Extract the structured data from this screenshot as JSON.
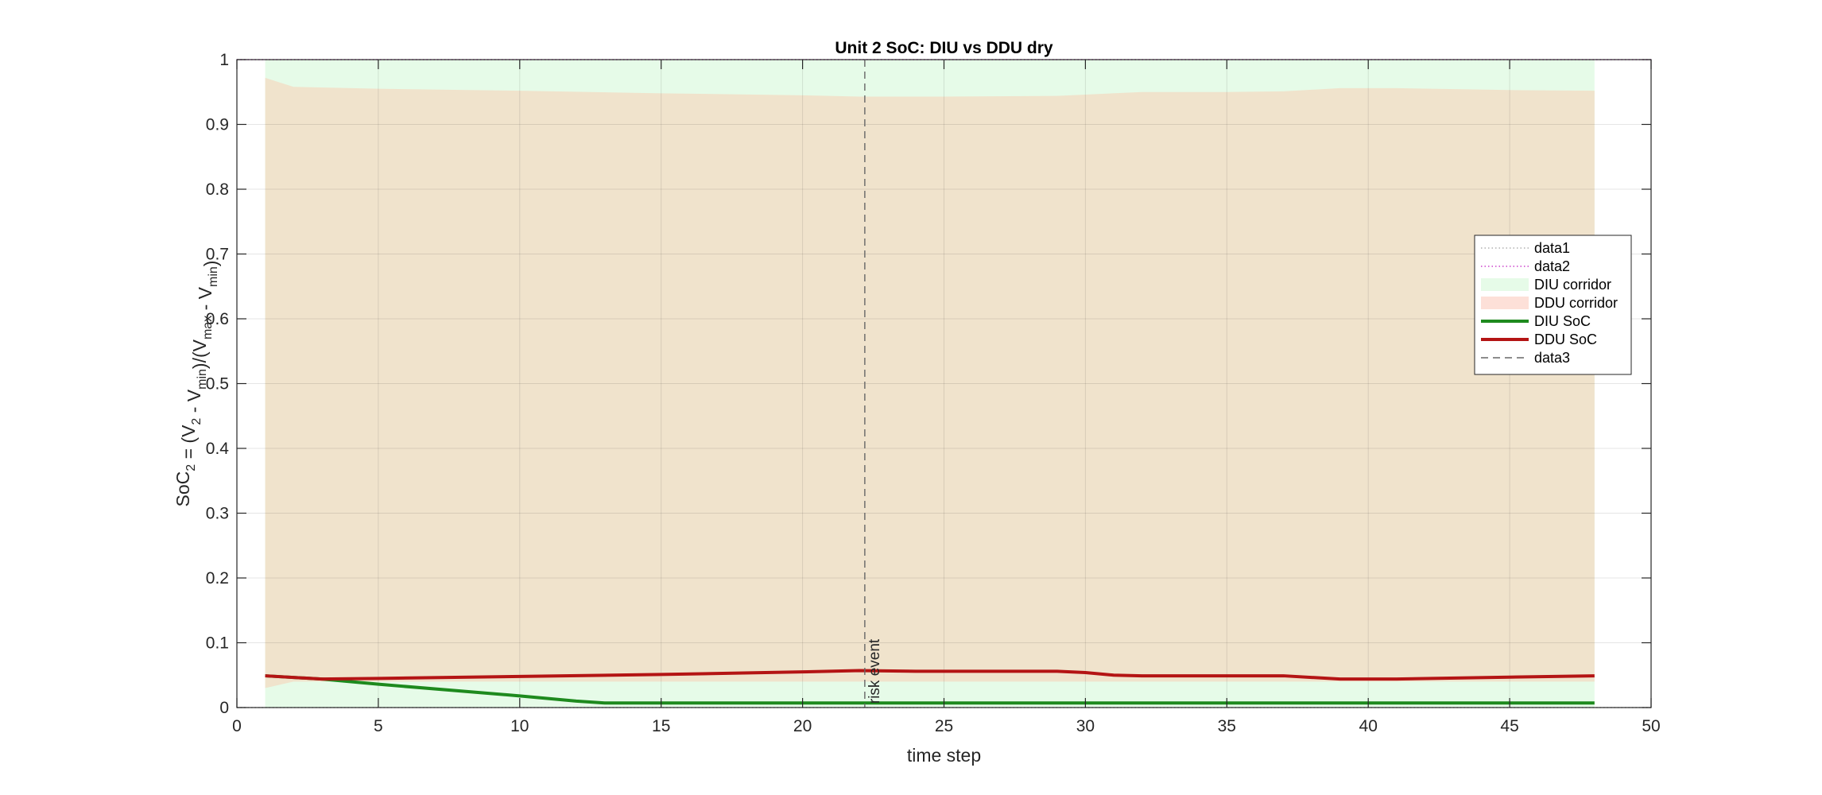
{
  "chart_data": {
    "type": "line",
    "title": "Unit 2 SoC: DIU vs DDU dry",
    "xlabel": "time step",
    "ylabel": "SoC2 = (V2 - Vmin)/(Vmax - Vmin)",
    "xlim": [
      0,
      50
    ],
    "ylim": [
      0,
      1
    ],
    "xticks": [
      0,
      5,
      10,
      15,
      20,
      25,
      30,
      35,
      40,
      45,
      50
    ],
    "yticks": [
      0,
      0.1,
      0.2,
      0.3,
      0.4,
      0.5,
      0.6,
      0.7,
      0.8,
      0.9,
      1
    ],
    "grid": true,
    "legend_position": "right",
    "series": [
      {
        "name": "data1",
        "kind": "hline",
        "style": "dotted",
        "color": "#b0b0b0",
        "y": 0
      },
      {
        "name": "data2",
        "kind": "hline",
        "style": "dotted",
        "color": "#cc44cc",
        "y": 1
      },
      {
        "name": "DIU corridor",
        "kind": "band",
        "color": "#e6fbe8",
        "x": [
          1,
          2,
          48
        ],
        "lower": [
          0,
          0,
          0
        ],
        "upper": [
          1,
          1,
          1
        ]
      },
      {
        "name": "DDU corridor",
        "kind": "band",
        "color": "#f0e3cc",
        "x": [
          1,
          2,
          5,
          10,
          15,
          20,
          22,
          25,
          29,
          30,
          32,
          35,
          37,
          39,
          41,
          45,
          48
        ],
        "lower": [
          0.03,
          0.04,
          0.04,
          0.04,
          0.04,
          0.04,
          0.04,
          0.04,
          0.04,
          0.04,
          0.04,
          0.04,
          0.04,
          0.04,
          0.04,
          0.04,
          0.04
        ],
        "upper": [
          0.972,
          0.958,
          0.955,
          0.952,
          0.948,
          0.945,
          0.943,
          0.943,
          0.944,
          0.946,
          0.95,
          0.95,
          0.951,
          0.956,
          0.956,
          0.953,
          0.952
        ]
      },
      {
        "name": "DIU SoC",
        "kind": "line",
        "style": "solid",
        "color": "#1e8a1e",
        "x": [
          1,
          3,
          5,
          10,
          12,
          13,
          15,
          20,
          25,
          30,
          35,
          40,
          45,
          48
        ],
        "y": [
          0.049,
          0.044,
          0.036,
          0.018,
          0.01,
          0.007,
          0.007,
          0.007,
          0.007,
          0.007,
          0.007,
          0.007,
          0.007,
          0.007
        ]
      },
      {
        "name": "DDU SoC",
        "kind": "line",
        "style": "solid",
        "color": "#b41414",
        "x": [
          1,
          3,
          5,
          10,
          15,
          20,
          22,
          24,
          25,
          29,
          30,
          31,
          32,
          35,
          37,
          39,
          41,
          45,
          48
        ],
        "y": [
          0.049,
          0.044,
          0.045,
          0.048,
          0.051,
          0.055,
          0.057,
          0.056,
          0.056,
          0.056,
          0.054,
          0.05,
          0.049,
          0.049,
          0.049,
          0.044,
          0.044,
          0.047,
          0.049
        ]
      },
      {
        "name": "data3",
        "kind": "vline",
        "style": "dashed",
        "color": "#666666",
        "x": 22.2
      }
    ],
    "annotations": [
      {
        "text": "risk event",
        "x": 22.2,
        "y": 0.006,
        "rotation": -90
      }
    ]
  }
}
